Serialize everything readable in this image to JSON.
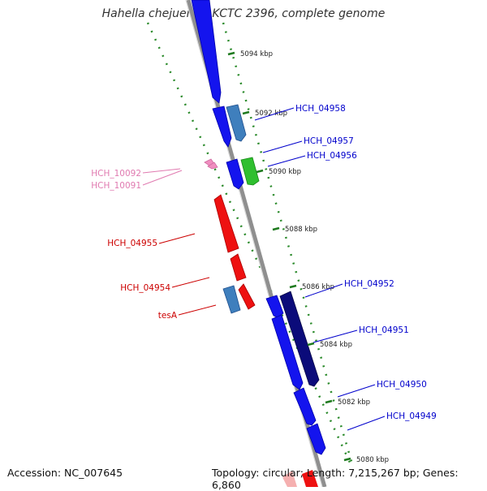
{
  "title": "Hahella chejuensis KCTC 2396, complete genome",
  "accession": "Accession: NC_007645",
  "topology_line": "Topology: circular; Length: 7,215,267 bp; Genes: 6,860",
  "ticks": [
    "5094 kbp",
    "5092 kbp",
    "5090 kbp",
    "5088 kbp",
    "5086 kbp",
    "5084 kbp",
    "5082 kbp",
    "5080 kbp"
  ],
  "gene_labels": {
    "HCH_04958": "HCH_04958",
    "HCH_04957": "HCH_04957",
    "HCH_04956": "HCH_04956",
    "HCH_10092": "HCH_10092",
    "HCH_10091": "HCH_10091",
    "HCH_04955": "HCH_04955",
    "HCH_04954": "HCH_04954",
    "HCH_04952": "HCH_04952",
    "tesA": "tesA",
    "HCH_04951": "HCH_04951",
    "HCH_04950": "HCH_04950",
    "HCH_04949": "HCH_04949"
  },
  "colors": {
    "forward_cds": "#1010ee",
    "forward_other": "#3f7fbd",
    "reverse_cds": "#ee1111",
    "reverse_other": "#3f7fbd",
    "dark_cds": "#0b0b7a",
    "green_feature": "#2fbf2f",
    "pink_feature": "#f08fc0",
    "backbone": "#8c8c8c",
    "tick_green": "#1f7a1f"
  }
}
